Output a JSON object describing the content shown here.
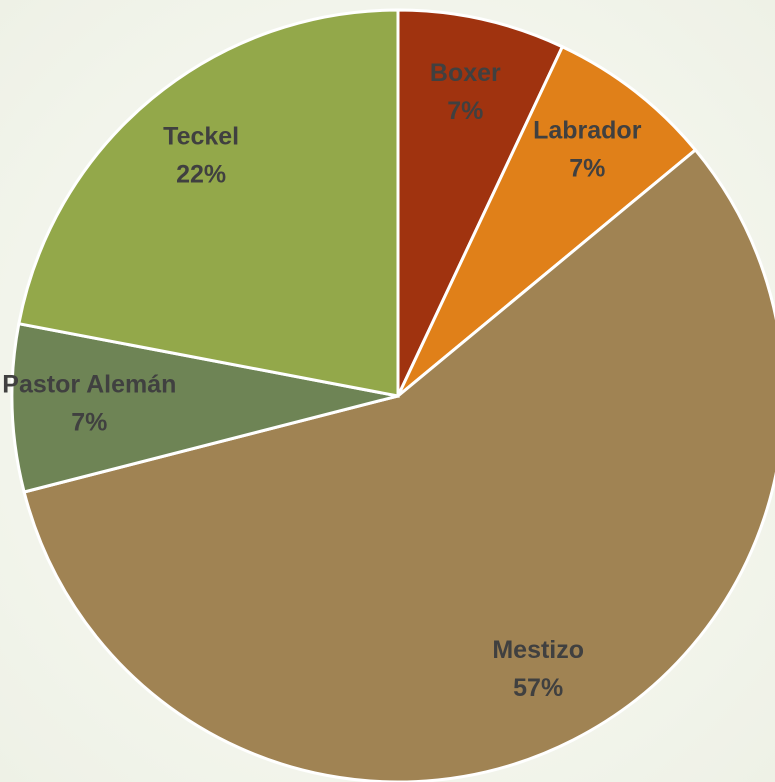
{
  "chart_data": {
    "type": "pie",
    "categories": [
      "Boxer",
      "Labrador",
      "Mestizo",
      "Pastor Alemán",
      "Teckel"
    ],
    "values": [
      7,
      7,
      57,
      7,
      22
    ],
    "value_labels": [
      "7%",
      "7%",
      "57%",
      "7%",
      "22%"
    ],
    "colors": [
      "#a0330f",
      "#e08019",
      "#a08353",
      "#6e8455",
      "#93a84a"
    ]
  }
}
